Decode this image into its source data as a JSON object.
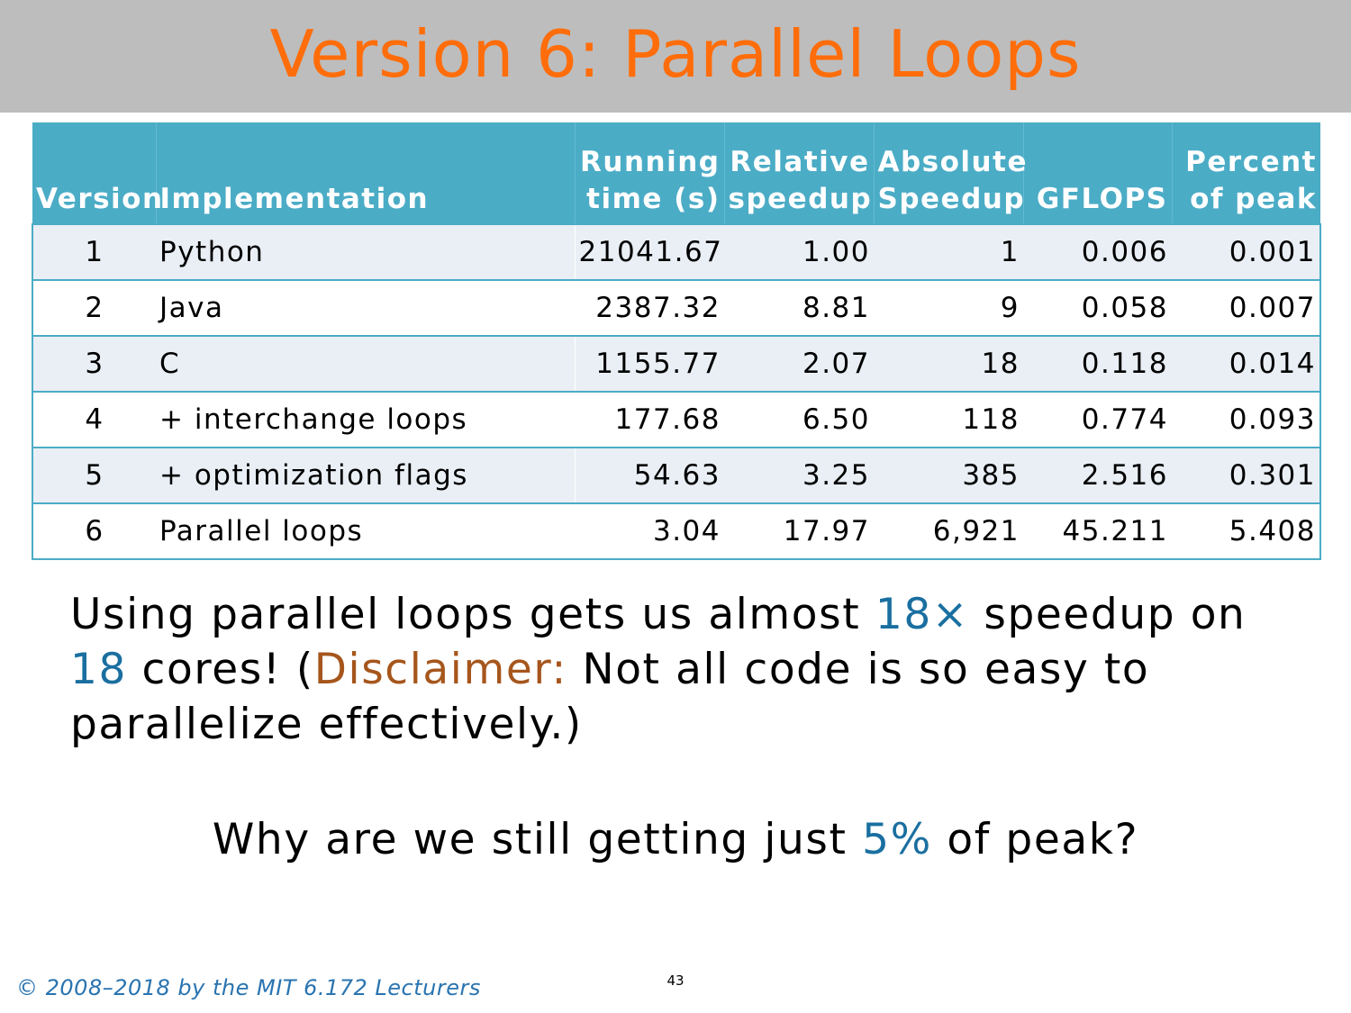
{
  "slide": {
    "title": "Version 6: Parallel Loops",
    "table": {
      "headers": {
        "version": "Version",
        "implementation": "Implementation",
        "running_line1": "Running",
        "running_line2": "time (s)",
        "relative_line1": "Relative",
        "relative_line2": "speedup",
        "absolute_line1": "Absolute",
        "absolute_line2": "Speedup",
        "gflops": "GFLOPS",
        "percent_line1": "Percent",
        "percent_line2": "of peak"
      },
      "rows": [
        {
          "version": "1",
          "implementation": "Python",
          "running_time": "21041.67",
          "relative_speedup": "1.00",
          "absolute_speedup": "1",
          "gflops": "0.006",
          "percent_peak": "0.001"
        },
        {
          "version": "2",
          "implementation": "Java",
          "running_time": "2387.32",
          "relative_speedup": "8.81",
          "absolute_speedup": "9",
          "gflops": "0.058",
          "percent_peak": "0.007"
        },
        {
          "version": "3",
          "implementation": "C",
          "running_time": "1155.77",
          "relative_speedup": "2.07",
          "absolute_speedup": "18",
          "gflops": "0.118",
          "percent_peak": "0.014"
        },
        {
          "version": "4",
          "implementation": "+ interchange loops",
          "running_time": "177.68",
          "relative_speedup": "6.50",
          "absolute_speedup": "118",
          "gflops": "0.774",
          "percent_peak": "0.093"
        },
        {
          "version": "5",
          "implementation": "+ optimization flags",
          "running_time": "54.63",
          "relative_speedup": "3.25",
          "absolute_speedup": "385",
          "gflops": "2.516",
          "percent_peak": "0.301"
        },
        {
          "version": "6",
          "implementation": "Parallel loops",
          "running_time": "3.04",
          "relative_speedup": "17.97",
          "absolute_speedup": "6,921",
          "gflops": "45.211",
          "percent_peak": "5.408"
        }
      ]
    },
    "paragraph": {
      "part1": "Using parallel loops gets us almost ",
      "hl1": "18×",
      "part2": " speedup on ",
      "hl2": "18",
      "part3": " cores!  (",
      "disclaimer": "Disclaimer:",
      "part4": " Not all code is so easy to parallelize effectively.)"
    },
    "question": {
      "part1": "Why are we still getting just ",
      "hl": "5%",
      "part2": " of peak?"
    },
    "footer": "© 2008–2018 by the MIT 6.172 Lecturers",
    "page_number": "43",
    "colors": {
      "title": "#ff6d0a",
      "title_bar": "#bdbdbd",
      "table_header": "#4bacc6",
      "table_band": "#e9eff5",
      "highlight_blue": "#1a6fa0",
      "highlight_brown": "#a6561c",
      "footer": "#2a74b0"
    }
  }
}
